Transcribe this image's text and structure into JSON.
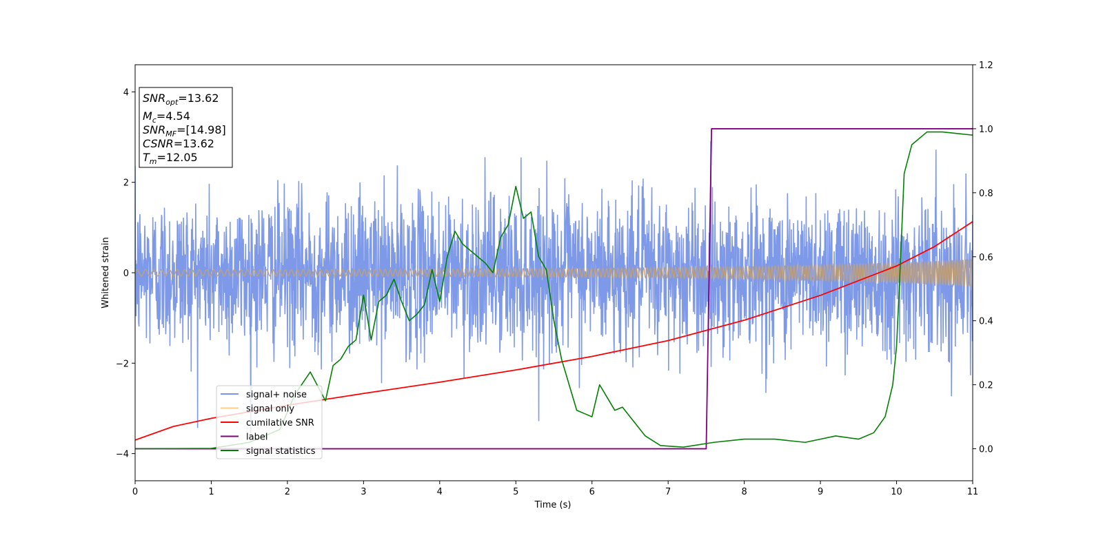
{
  "chart_data": {
    "type": "line",
    "xlabel": "Time (s)",
    "ylabel": "Whitened strain",
    "xlim": [
      0,
      11
    ],
    "ylim_left": [
      -4.6,
      4.6
    ],
    "ylim_right": [
      -0.1,
      1.2
    ],
    "xticks": [
      "0",
      "1",
      "2",
      "3",
      "4",
      "5",
      "6",
      "7",
      "8",
      "9",
      "10",
      "11"
    ],
    "yticks_left": [
      "−4",
      "−2",
      "0",
      "2",
      "4"
    ],
    "yticks_right": [
      "0.0",
      "0.2",
      "0.4",
      "0.6",
      "0.8",
      "1.0",
      "1.2"
    ],
    "annotations": [
      {
        "sym": "SNR",
        "sub": "opt",
        "value": "=13.62"
      },
      {
        "sym": "M",
        "sub": "c",
        "value": "=4.54"
      },
      {
        "sym": "SNR",
        "sub": "MF",
        "value": "=[14.98]"
      },
      {
        "sym": "CSNR",
        "sub": "",
        "value": "=13.62"
      },
      {
        "sym": "T",
        "sub": "m",
        "value": "=12.05"
      }
    ],
    "legend_position": "lower-left",
    "series": [
      {
        "name": "signal+ noise",
        "color": "#7893e8",
        "axis": "left",
        "noise_sigma": 0.85,
        "x_range": [
          0,
          11
        ]
      },
      {
        "name": "signal only",
        "color": "#ffcc80",
        "axis": "left",
        "amplitude_envelope": {
          "x": [
            0,
            2,
            4,
            6,
            8,
            10,
            11
          ],
          "y": [
            0.07,
            0.07,
            0.08,
            0.1,
            0.13,
            0.22,
            0.3
          ]
        }
      },
      {
        "name": "cumilative SNR",
        "color": "#ff0000",
        "axis": "left",
        "x": [
          0,
          0.5,
          1,
          2,
          3,
          4,
          5,
          6,
          7,
          8,
          9,
          10,
          10.5,
          11
        ],
        "y": [
          -3.7,
          -3.4,
          -3.22,
          -2.93,
          -2.67,
          -2.42,
          -2.15,
          -1.85,
          -1.5,
          -1.05,
          -0.5,
          0.15,
          0.58,
          1.13
        ]
      },
      {
        "name": "label",
        "color": "#800080",
        "axis": "right",
        "x": [
          0,
          7.5,
          7.57,
          11
        ],
        "y": [
          0,
          0,
          1,
          1
        ]
      },
      {
        "name": "signal statistics",
        "color": "#008000",
        "axis": "right",
        "x": [
          0,
          1,
          1.5,
          1.9,
          2.1,
          2.3,
          2.5,
          2.6,
          2.7,
          2.8,
          2.9,
          3.0,
          3.1,
          3.2,
          3.3,
          3.4,
          3.5,
          3.6,
          3.7,
          3.8,
          3.9,
          4.0,
          4.1,
          4.2,
          4.3,
          4.4,
          4.5,
          4.6,
          4.7,
          4.8,
          4.9,
          5.0,
          5.1,
          5.2,
          5.3,
          5.4,
          5.5,
          5.6,
          5.7,
          5.8,
          5.9,
          6.0,
          6.1,
          6.2,
          6.3,
          6.4,
          6.5,
          6.7,
          6.9,
          7.2,
          7.6,
          8.0,
          8.4,
          8.8,
          9.2,
          9.5,
          9.7,
          9.85,
          9.95,
          10.0,
          10.05,
          10.1,
          10.2,
          10.4,
          10.6,
          11
        ],
        "y": [
          0,
          0.001,
          0.02,
          0.06,
          0.17,
          0.24,
          0.15,
          0.26,
          0.28,
          0.32,
          0.34,
          0.48,
          0.34,
          0.46,
          0.48,
          0.53,
          0.46,
          0.4,
          0.42,
          0.45,
          0.56,
          0.46,
          0.6,
          0.68,
          0.64,
          0.62,
          0.6,
          0.58,
          0.55,
          0.66,
          0.7,
          0.82,
          0.72,
          0.74,
          0.6,
          0.56,
          0.4,
          0.28,
          0.2,
          0.12,
          0.11,
          0.1,
          0.2,
          0.16,
          0.12,
          0.13,
          0.1,
          0.04,
          0.01,
          0.005,
          0.02,
          0.03,
          0.03,
          0.02,
          0.04,
          0.03,
          0.05,
          0.1,
          0.2,
          0.32,
          0.58,
          0.86,
          0.95,
          0.99,
          0.99,
          0.98
        ]
      }
    ]
  }
}
